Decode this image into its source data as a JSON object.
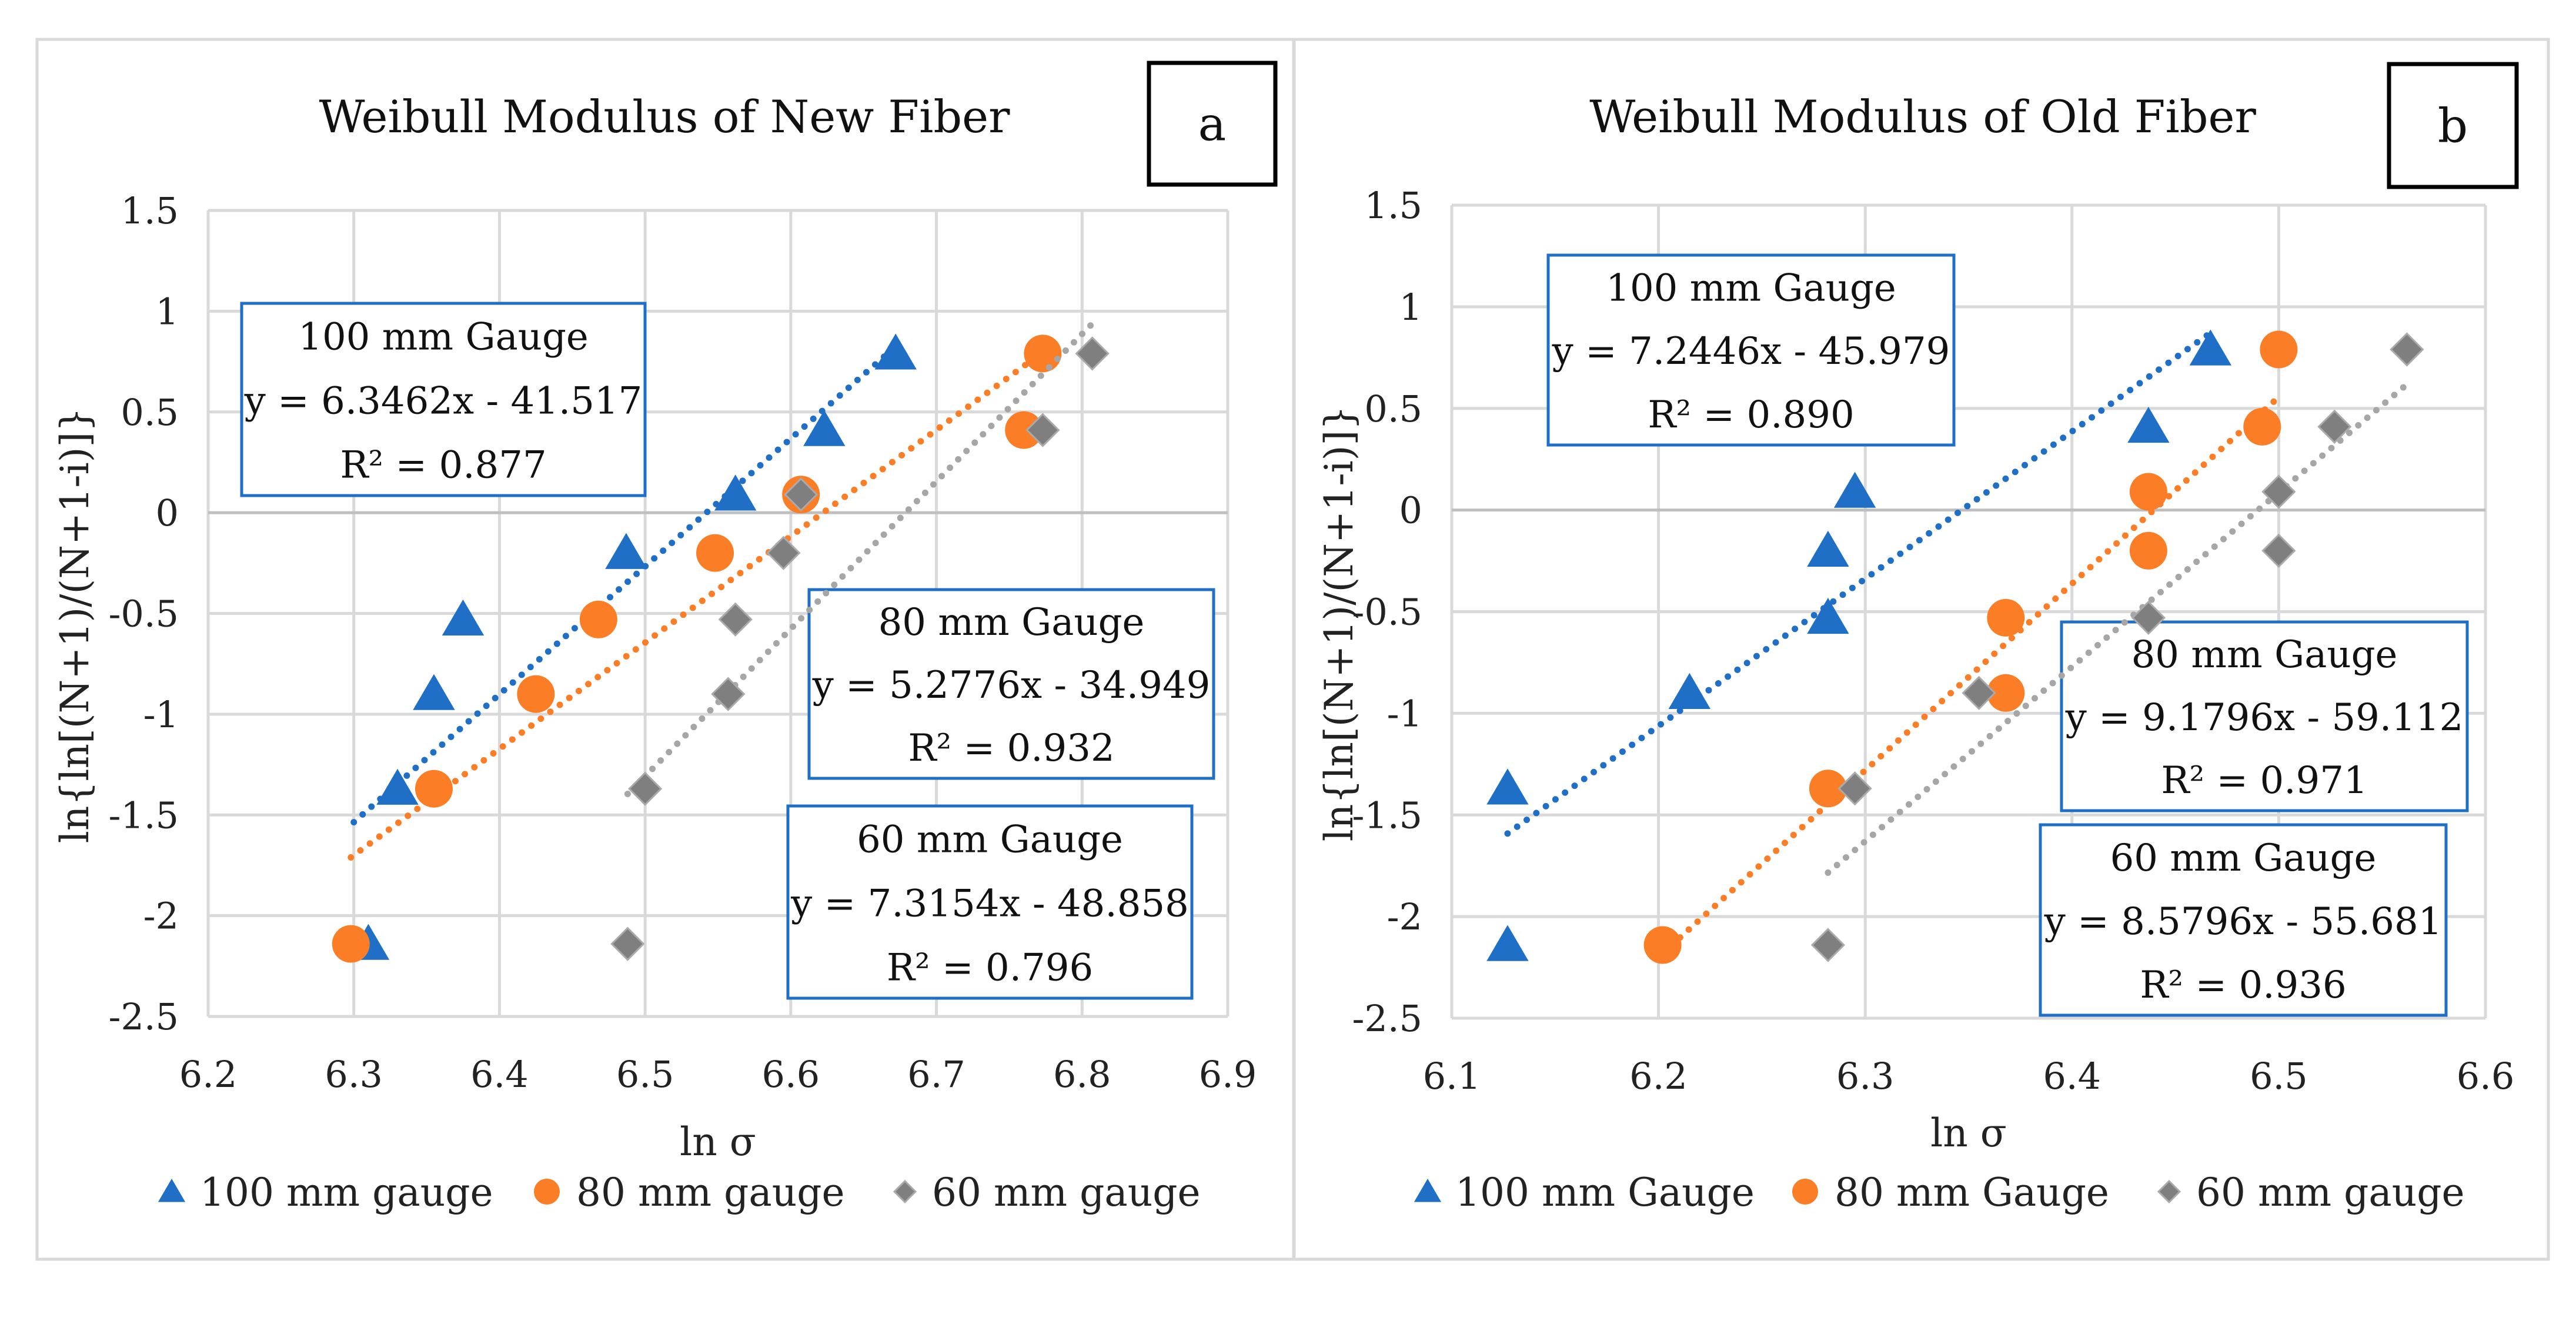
{
  "colors": {
    "s100": "#1F6FC6",
    "s80": "#FB7D25",
    "s60": "#7F7F7F",
    "grid": "#D9D9D9",
    "annot_border": "#1F6FC6"
  },
  "chart_data": [
    {
      "type": "scatter",
      "panel_label": "a",
      "title": "Weibull Modulus of New Fiber",
      "xlabel": "ln σ",
      "ylabel": "ln{ln[(N+1)/(N+1-i)]}",
      "xlim": [
        6.2,
        6.9
      ],
      "ylim": [
        -2.5,
        1.5
      ],
      "xticks": [
        "6.2",
        "6.3",
        "6.4",
        "6.5",
        "6.6",
        "6.7",
        "6.8",
        "6.9"
      ],
      "yticks": [
        "1.5",
        "1",
        "0.5",
        "0",
        "-0.5",
        "-1",
        "-1.5",
        "-2",
        "-2.5"
      ],
      "grid": true,
      "legend_position": "bottom",
      "series": [
        {
          "name": "100 mm gauge",
          "marker": "triangle",
          "color_key": "s100",
          "x": [
            6.31,
            6.33,
            6.355,
            6.375,
            6.487,
            6.562,
            6.623,
            6.672
          ],
          "y": [
            -2.14,
            -1.37,
            -0.9,
            -0.53,
            -0.2,
            0.09,
            0.41,
            0.79
          ],
          "trendline": {
            "slope": 6.3462,
            "intercept": -41.517,
            "xrange": [
              6.3,
              6.672
            ]
          },
          "annotation": [
            "100 mm Gauge",
            "y = 6.3462x - 41.517",
            "R² = 0.877"
          ]
        },
        {
          "name": "80 mm gauge",
          "marker": "circle",
          "color_key": "s80",
          "x": [
            6.298,
            6.355,
            6.425,
            6.468,
            6.548,
            6.607,
            6.76,
            6.773
          ],
          "y": [
            -2.14,
            -1.37,
            -0.9,
            -0.53,
            -0.2,
            0.09,
            0.41,
            0.79
          ],
          "trendline": {
            "slope": 5.2776,
            "intercept": -34.949,
            "xrange": [
              6.298,
              6.773
            ]
          },
          "annotation": [
            "80 mm Gauge",
            "y = 5.2776x - 34.949",
            "R² = 0.932"
          ]
        },
        {
          "name": "60 mm gauge",
          "marker": "diamond",
          "color_key": "s60",
          "x": [
            6.488,
            6.5,
            6.557,
            6.562,
            6.595,
            6.607,
            6.773,
            6.807
          ],
          "y": [
            -2.14,
            -1.37,
            -0.9,
            -0.53,
            -0.2,
            0.09,
            0.41,
            0.79
          ],
          "trendline": {
            "slope": 7.3154,
            "intercept": -48.858,
            "xrange": [
              6.488,
              6.807
            ]
          },
          "annotation": [
            "60 mm Gauge",
            "y = 7.3154x - 48.858",
            "R² = 0.796"
          ]
        }
      ]
    },
    {
      "type": "scatter",
      "panel_label": "b",
      "title": "Weibull Modulus of Old Fiber",
      "xlabel": "ln σ",
      "ylabel": "ln{ln[(N+1)/(N+1-i)]}",
      "xlim": [
        6.1,
        6.6
      ],
      "ylim": [
        -2.5,
        1.5
      ],
      "xticks": [
        "6.1",
        "6.2",
        "6.3",
        "6.4",
        "6.5",
        "6.6"
      ],
      "yticks": [
        "1.5",
        "1",
        "0.5",
        "0",
        "-0.5",
        "-1",
        "-1.5",
        "-2",
        "-2.5"
      ],
      "grid": true,
      "legend_position": "bottom",
      "series": [
        {
          "name": "100 mm Gauge",
          "marker": "triangle",
          "color_key": "s100",
          "x": [
            6.127,
            6.127,
            6.215,
            6.282,
            6.282,
            6.295,
            6.437,
            6.467
          ],
          "y": [
            -2.14,
            -1.37,
            -0.9,
            -0.53,
            -0.2,
            0.09,
            0.41,
            0.79
          ],
          "trendline": {
            "slope": 7.2446,
            "intercept": -45.979,
            "xrange": [
              6.127,
              6.467
            ]
          },
          "annotation": [
            "100 mm Gauge",
            "y = 7.2446x - 45.979",
            "R² = 0.890"
          ]
        },
        {
          "name": "80 mm Gauge",
          "marker": "circle",
          "color_key": "s80",
          "x": [
            6.202,
            6.282,
            6.368,
            6.368,
            6.437,
            6.437,
            6.492,
            6.5
          ],
          "y": [
            -2.14,
            -1.37,
            -0.9,
            -0.53,
            -0.2,
            0.09,
            0.41,
            0.79
          ],
          "trendline": {
            "slope": 9.1796,
            "intercept": -59.112,
            "xrange": [
              6.202,
              6.5
            ]
          },
          "annotation": [
            "80 mm Gauge",
            "y = 9.1796x - 59.112",
            "R² = 0.971"
          ]
        },
        {
          "name": "60 mm gauge",
          "marker": "diamond",
          "color_key": "s60",
          "x": [
            6.282,
            6.295,
            6.355,
            6.437,
            6.5,
            6.5,
            6.527,
            6.562
          ],
          "y": [
            -2.14,
            -1.37,
            -0.9,
            -0.53,
            -0.2,
            0.09,
            0.41,
            0.79
          ],
          "trendline": {
            "slope": 8.5796,
            "intercept": -55.681,
            "xrange": [
              6.282,
              6.562
            ]
          },
          "annotation": [
            "60 mm Gauge",
            "y = 8.5796x - 55.681",
            "R² = 0.936"
          ]
        }
      ]
    }
  ]
}
